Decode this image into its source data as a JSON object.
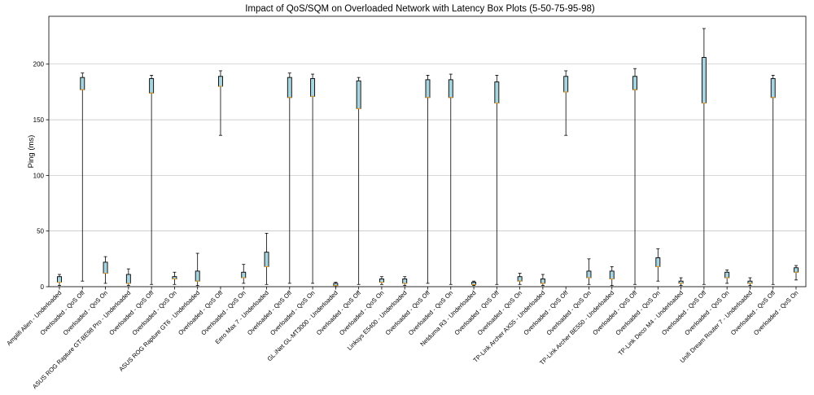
{
  "chart_data": {
    "type": "box",
    "title": "Impact of QoS/SQM on Overloaded Network with Latency Box Plots (5-50-75-95-98)",
    "xlabel": "",
    "ylabel": "Ping (ms)",
    "ylim": [
      0,
      243
    ],
    "yticks": [
      0,
      50,
      100,
      150,
      200
    ],
    "grid": "horizontal",
    "colors": {
      "box_fill": "#a6d5e0",
      "median": "#f5a623",
      "line": "#000000",
      "grid": "#b0b0b0"
    },
    "categories": [
      "Amplifi Alien - Underloaded",
      "Overloaded - QoS Off",
      "Overloaded - QoS On",
      "ASUS ROG Rapture GT-BE98 Pro - Underloaded",
      "Overloaded - QoS Off",
      "Overloaded - QoS On",
      "ASUS ROG Rapture GT6 - Underloaded",
      "Overloaded - QoS Off",
      "Overloaded - QoS On",
      "Eero Max 7 - Underloaded",
      "Overloaded - QoS Off",
      "Overloaded - QoS On",
      "GL.iNet GL-MT3000 - Underloaded",
      "Overloaded - QoS Off",
      "Overloaded - QoS On",
      "Linksys E5400 - Underloaded",
      "Overloaded - QoS Off",
      "Overloaded - QoS On",
      "Netduma R3 - Underloaded",
      "Overloaded - QoS Off",
      "Overloaded - QoS On",
      "TP-Link Archer AX55 - Underloaded",
      "Overloaded - QoS Off",
      "Overloaded - QoS On",
      "TP-Link Archer BE550 - Underloaded",
      "Overloaded - QoS Off",
      "Overloaded - QoS On",
      "TP-Link Deco M4 - Underloaded",
      "Overloaded - QoS Off",
      "Overloaded - QoS On",
      "Unifi Dream Router 7 - Underloaded",
      "Overloaded - QoS Off",
      "Overloaded - QoS On"
    ],
    "boxes": [
      {
        "p5": 1,
        "p50": 4,
        "p75": 9,
        "p95": 10,
        "p98": 11
      },
      {
        "p5": 5,
        "p50": 177,
        "p75": 188,
        "p95": 190,
        "p98": 192
      },
      {
        "p5": 3,
        "p50": 12,
        "p75": 22,
        "p95": 26,
        "p98": 27
      },
      {
        "p5": 1,
        "p50": 3,
        "p75": 11,
        "p95": 15,
        "p98": 16
      },
      {
        "p5": 2,
        "p50": 174,
        "p75": 187,
        "p95": 189,
        "p98": 190
      },
      {
        "p5": 2,
        "p50": 7,
        "p75": 9,
        "p95": 12,
        "p98": 13
      },
      {
        "p5": 1,
        "p50": 5,
        "p75": 14,
        "p95": 25,
        "p98": 30
      },
      {
        "p5": 136,
        "p50": 180,
        "p75": 189,
        "p95": 192,
        "p98": 194
      },
      {
        "p5": 3,
        "p50": 8,
        "p75": 13,
        "p95": 18,
        "p98": 20
      },
      {
        "p5": 2,
        "p50": 18,
        "p75": 31,
        "p95": 45,
        "p98": 48
      },
      {
        "p5": 3,
        "p50": 170,
        "p75": 188,
        "p95": 190,
        "p98": 192
      },
      {
        "p5": 3,
        "p50": 171,
        "p75": 187,
        "p95": 190,
        "p98": 191
      },
      {
        "p5": 0,
        "p50": 1,
        "p75": 3,
        "p95": 4,
        "p98": 4
      },
      {
        "p5": 2,
        "p50": 160,
        "p75": 185,
        "p95": 187,
        "p98": 188
      },
      {
        "p5": 2,
        "p50": 4,
        "p75": 7,
        "p95": 8,
        "p98": 9
      },
      {
        "p5": 1,
        "p50": 3,
        "p75": 7,
        "p95": 8,
        "p98": 9
      },
      {
        "p5": 3,
        "p50": 170,
        "p75": 186,
        "p95": 188,
        "p98": 190
      },
      {
        "p5": 2,
        "p50": 170,
        "p75": 186,
        "p95": 189,
        "p98": 191
      },
      {
        "p5": 1,
        "p50": 2,
        "p75": 4,
        "p95": 4,
        "p98": 5
      },
      {
        "p5": 2,
        "p50": 165,
        "p75": 184,
        "p95": 187,
        "p98": 190
      },
      {
        "p5": 2,
        "p50": 5,
        "p75": 9,
        "p95": 11,
        "p98": 12
      },
      {
        "p5": 1,
        "p50": 3,
        "p75": 7,
        "p95": 10,
        "p98": 11
      },
      {
        "p5": 136,
        "p50": 175,
        "p75": 189,
        "p95": 193,
        "p98": 194
      },
      {
        "p5": 2,
        "p50": 8,
        "p75": 14,
        "p95": 22,
        "p98": 25
      },
      {
        "p5": 1,
        "p50": 7,
        "p75": 14,
        "p95": 17,
        "p98": 18
      },
      {
        "p5": 2,
        "p50": 177,
        "p75": 189,
        "p95": 194,
        "p98": 196
      },
      {
        "p5": 5,
        "p50": 18,
        "p75": 26,
        "p95": 32,
        "p98": 34
      },
      {
        "p5": 1,
        "p50": 3,
        "p75": 5,
        "p95": 7,
        "p98": 8
      },
      {
        "p5": 2,
        "p50": 165,
        "p75": 206,
        "p95": 225,
        "p98": 232
      },
      {
        "p5": 3,
        "p50": 8,
        "p75": 13,
        "p95": 14,
        "p98": 15
      },
      {
        "p5": 1,
        "p50": 3,
        "p75": 5,
        "p95": 7,
        "p98": 8
      },
      {
        "p5": 2,
        "p50": 170,
        "p75": 187,
        "p95": 189,
        "p98": 190
      },
      {
        "p5": 6,
        "p50": 13,
        "p75": 17,
        "p95": 18,
        "p98": 19
      }
    ]
  }
}
